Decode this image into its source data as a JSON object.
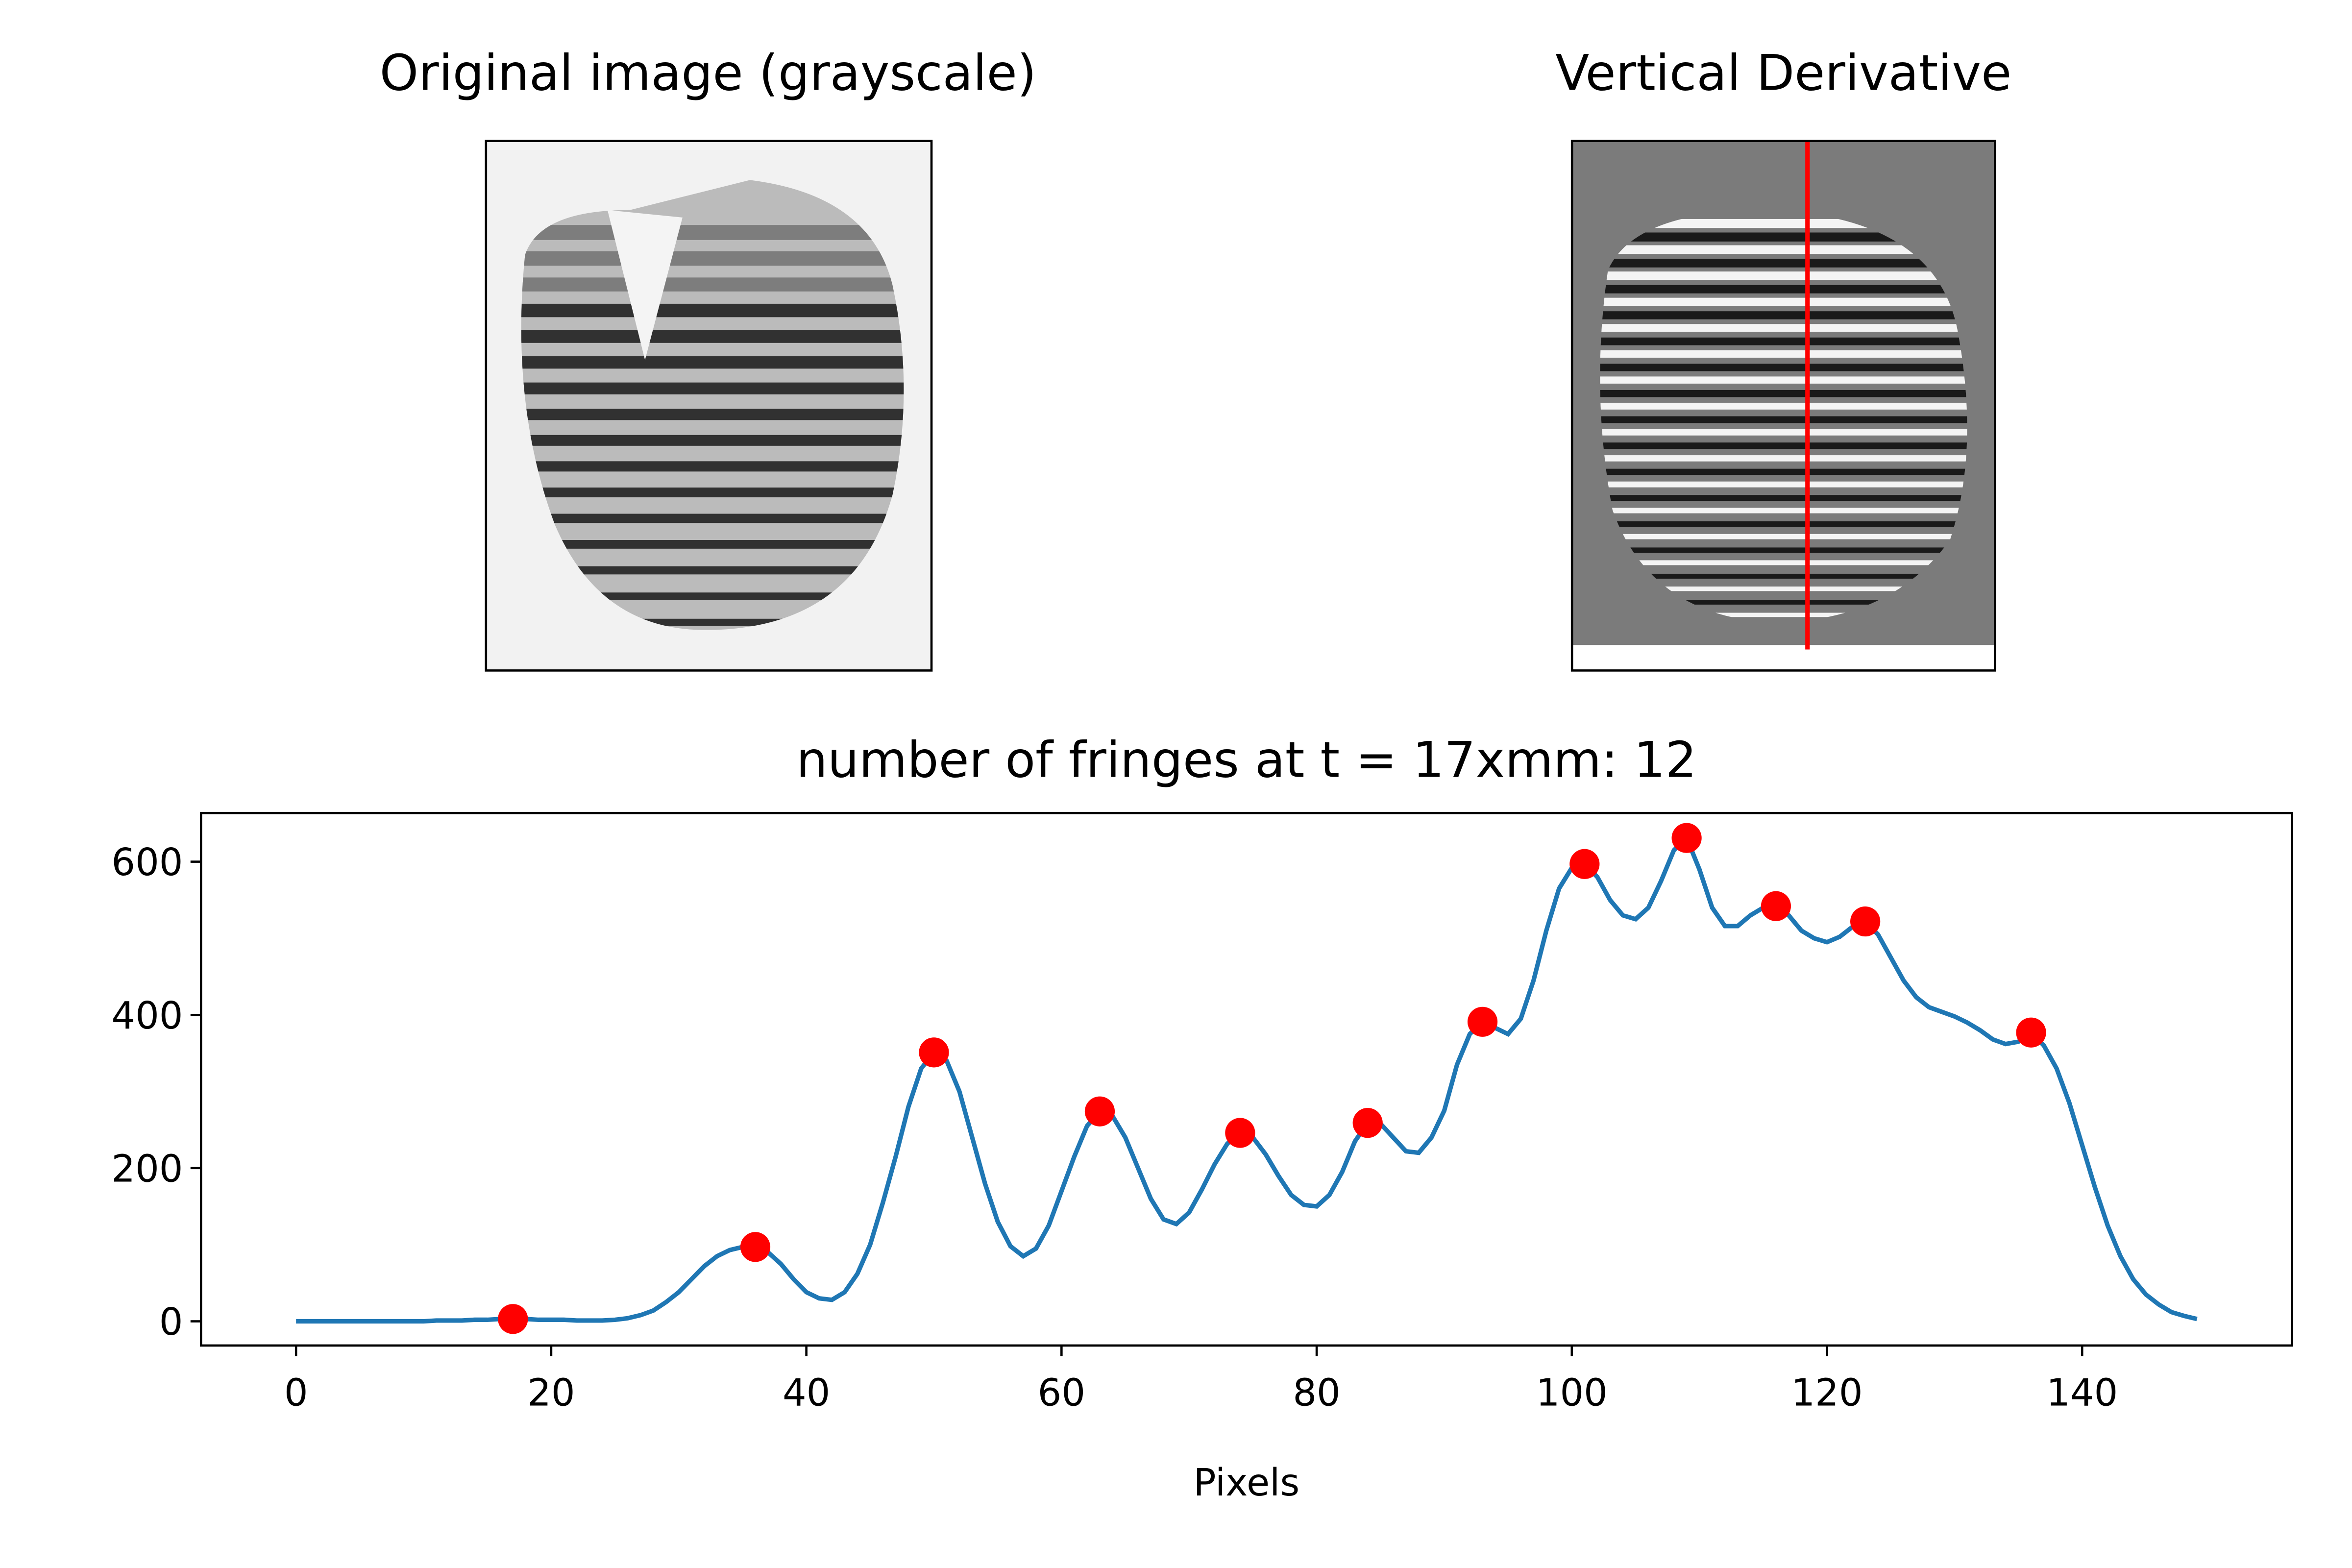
{
  "images": [
    {
      "title": "Original image (grayscale)"
    },
    {
      "title": "Vertical Derivative"
    }
  ],
  "chart_data": {
    "type": "line",
    "title": "number of fringes at t = 17xmm: 12",
    "xlabel": "Pixels",
    "x": [
      0,
      1,
      2,
      3,
      4,
      5,
      6,
      7,
      8,
      9,
      10,
      11,
      12,
      13,
      14,
      15,
      16,
      17,
      18,
      19,
      20,
      21,
      22,
      23,
      24,
      25,
      26,
      27,
      28,
      29,
      30,
      31,
      32,
      33,
      34,
      35,
      36,
      37,
      38,
      39,
      40,
      41,
      42,
      43,
      44,
      45,
      46,
      47,
      48,
      49,
      50,
      51,
      52,
      53,
      54,
      55,
      56,
      57,
      58,
      59,
      60,
      61,
      62,
      63,
      64,
      65,
      66,
      67,
      68,
      69,
      70,
      71,
      72,
      73,
      74,
      75,
      76,
      77,
      78,
      79,
      80,
      81,
      82,
      83,
      84,
      85,
      86,
      87,
      88,
      89,
      90,
      91,
      92,
      93,
      94,
      95,
      96,
      97,
      98,
      99,
      100,
      101,
      102,
      103,
      104,
      105,
      106,
      107,
      108,
      109,
      110,
      111,
      112,
      113,
      114,
      115,
      116,
      117,
      118,
      119,
      120,
      121,
      122,
      123,
      124,
      125,
      126,
      127,
      128,
      129,
      130,
      131,
      132,
      133,
      134,
      135,
      136,
      137,
      138,
      139,
      140,
      141,
      142,
      143,
      144,
      145,
      146,
      147,
      148,
      149
    ],
    "series": [
      {
        "color": "#1f77b4",
        "values": [
          0,
          0,
          0,
          0,
          0,
          0,
          0,
          0,
          0,
          0,
          0,
          1,
          1,
          1,
          2,
          2,
          3,
          3,
          3,
          2,
          2,
          2,
          1,
          1,
          1,
          2,
          4,
          8,
          14,
          25,
          38,
          55,
          72,
          85,
          93,
          97,
          97,
          90,
          75,
          55,
          38,
          30,
          28,
          38,
          62,
          100,
          155,
          215,
          280,
          330,
          351,
          340,
          300,
          240,
          180,
          130,
          98,
          85,
          95,
          125,
          170,
          215,
          255,
          274,
          268,
          240,
          200,
          160,
          133,
          127,
          142,
          172,
          205,
          232,
          246,
          240,
          218,
          190,
          165,
          152,
          150,
          165,
          195,
          235,
          259,
          258,
          240,
          222,
          220,
          240,
          275,
          335,
          375,
          391,
          383,
          375,
          395,
          445,
          510,
          565,
          592,
          597,
          580,
          550,
          530,
          525,
          540,
          575,
          615,
          631,
          590,
          540,
          516,
          516,
          530,
          540,
          542,
          530,
          510,
          500,
          495,
          502,
          515,
          522,
          505,
          475,
          445,
          423,
          410,
          404,
          398,
          390,
          380,
          368,
          362,
          365,
          377,
          360,
          330,
          285,
          230,
          175,
          125,
          85,
          55,
          35,
          22,
          12,
          7,
          3
        ]
      }
    ],
    "peaks": {
      "color": "#ff0000",
      "x": [
        17,
        36,
        50,
        63,
        74,
        84,
        93,
        101,
        109,
        116,
        123,
        136
      ],
      "values": [
        3,
        97,
        351,
        274,
        246,
        259,
        391,
        597,
        631,
        542,
        522,
        377
      ]
    },
    "xlim": [
      -7.45,
      156.45
    ],
    "ylim": [
      -31.6,
      663.6
    ],
    "xticks": [
      0,
      20,
      40,
      60,
      80,
      100,
      120,
      140
    ],
    "yticks": [
      0,
      200,
      400,
      600
    ]
  }
}
